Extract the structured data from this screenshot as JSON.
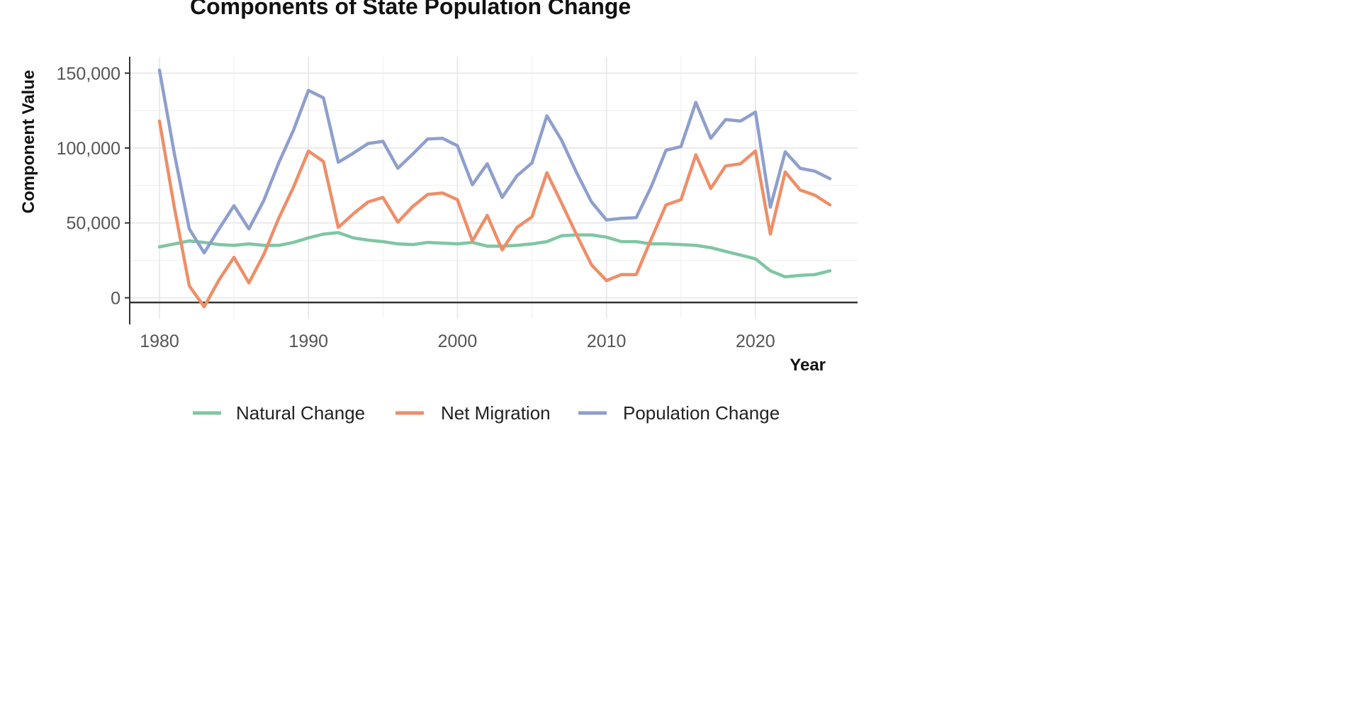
{
  "chart_data": {
    "type": "line",
    "title": "Components of State Population Change",
    "xlabel": "Year",
    "ylabel": "Component Value",
    "x": [
      1980,
      1981,
      1982,
      1983,
      1984,
      1985,
      1986,
      1987,
      1988,
      1989,
      1990,
      1991,
      1992,
      1993,
      1994,
      1995,
      1996,
      1997,
      1998,
      1999,
      2000,
      2001,
      2002,
      2003,
      2004,
      2005,
      2006,
      2007,
      2008,
      2009,
      2010,
      2011,
      2012,
      2013,
      2014,
      2015,
      2016,
      2017,
      2018,
      2019,
      2020,
      2021,
      2022,
      2023,
      2024,
      2025
    ],
    "xlim": [
      1978,
      2027
    ],
    "ylim": [
      -14000,
      161000
    ],
    "x_ticks": [
      1980,
      1990,
      2000,
      2010,
      2020
    ],
    "x_tick_labels": [
      "1980",
      "1990",
      "2000",
      "2010",
      "2020"
    ],
    "y_ticks": [
      0,
      50000,
      100000,
      150000
    ],
    "y_tick_labels": [
      "0",
      "50,000",
      "100,000",
      "150,000"
    ],
    "grid": true,
    "legend_position": "bottom",
    "series": [
      {
        "name": "Natural Change",
        "color": "#7fc6a4",
        "values": [
          34000,
          36000,
          38000,
          37000,
          35500,
          35000,
          36000,
          35000,
          35000,
          37000,
          40000,
          42500,
          43500,
          40000,
          38500,
          37500,
          36000,
          35500,
          37000,
          36500,
          36000,
          37000,
          34500,
          34500,
          35000,
          36000,
          37500,
          41500,
          42000,
          42000,
          40500,
          37500,
          37500,
          36000,
          36000,
          35500,
          35000,
          33500,
          31000,
          28500,
          26000,
          18000,
          14000,
          15000,
          15500,
          18000
        ]
      },
      {
        "name": "Net Migration",
        "color": "#ee8e68",
        "values": [
          118000,
          60000,
          8000,
          -6000,
          12000,
          27000,
          10000,
          29000,
          53000,
          74000,
          98000,
          91000,
          47000,
          56000,
          64000,
          67000,
          50500,
          61000,
          69000,
          70000,
          65500,
          38000,
          55000,
          32000,
          47000,
          54000,
          83500,
          63000,
          42000,
          22000,
          11500,
          15500,
          15500,
          39000,
          62000,
          65500,
          95500,
          73000,
          88000,
          89500,
          98000,
          42500,
          84000,
          72000,
          68500,
          62000
        ]
      },
      {
        "name": "Population Change",
        "color": "#8e9fcd",
        "values": [
          152000,
          96000,
          46000,
          30000,
          46000,
          61500,
          46000,
          65000,
          90000,
          112000,
          138500,
          133500,
          90500,
          96500,
          103000,
          104500,
          86500,
          96000,
          106000,
          106500,
          101500,
          75500,
          89500,
          67000,
          81500,
          90000,
          121500,
          105000,
          83500,
          64000,
          52000,
          53000,
          53500,
          74000,
          98500,
          101000,
          130500,
          106500,
          119000,
          118000,
          124000,
          60500,
          97500,
          86500,
          84500,
          79500
        ]
      }
    ]
  }
}
